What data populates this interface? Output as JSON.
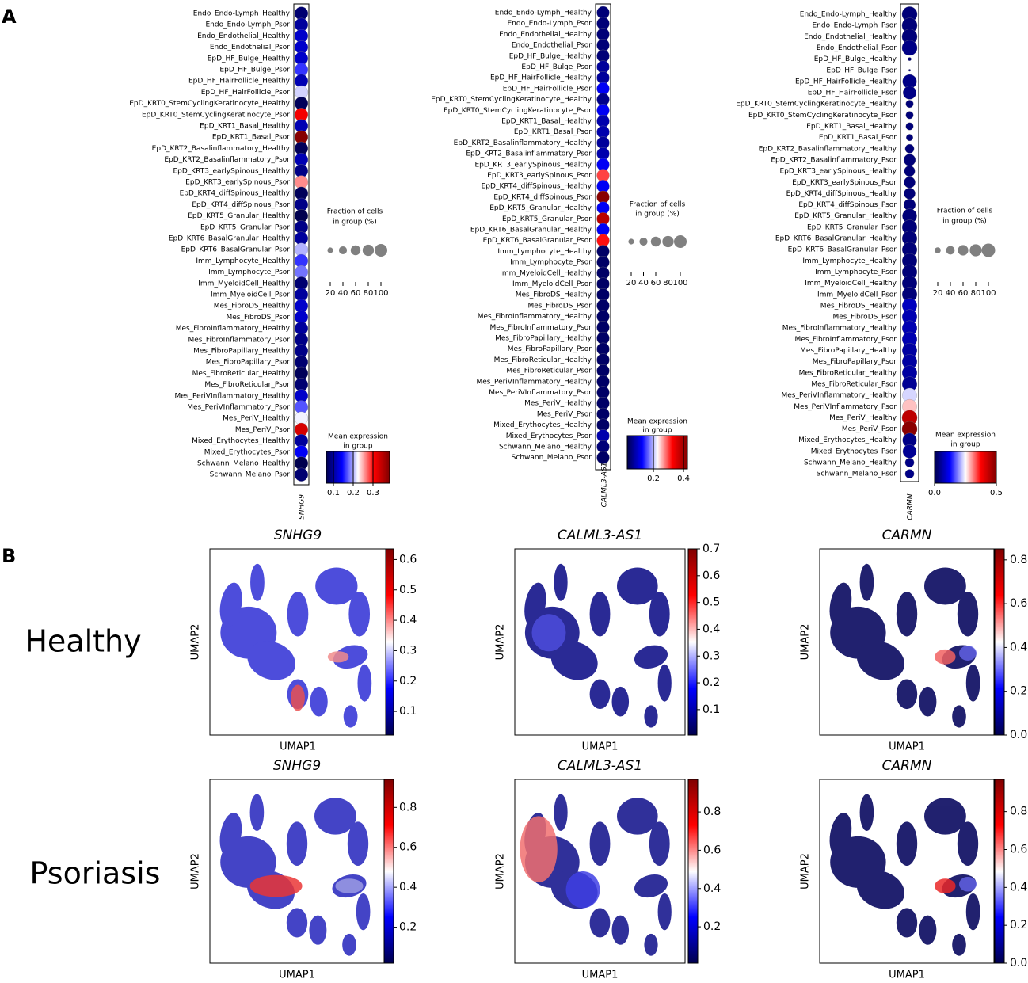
{
  "panel_labels": [
    "A",
    "B"
  ],
  "row_labels": [
    "Healthy",
    "Psoriasis"
  ],
  "chart_data": [
    {
      "type": "dotplot",
      "gene": "SNHG9",
      "categories": [
        "Endo_Endo-Lymph_Healthy",
        "Endo_Endo-Lymph_Psor",
        "Endo_Endothelial_Healthy",
        "Endo_Endothelial_Psor",
        "EpD_HF_Bulge_Healthy",
        "EpD_HF_Bulge_Psor",
        "EpD_HF_HairFollicle_Healthy",
        "EpD_HF_HairFollicle_Psor",
        "EpD_KRT0_StemCyclingKeratinocyte_Healthy",
        "EpD_KRT0_StemCyclingKeratinocyte_Psor",
        "EpD_KRT1_Basal_Healthy",
        "EpD_KRT1_Basal_Psor",
        "EpD_KRT2_Basalinflammatory_Healthy",
        "EpD_KRT2_Basalinflammatory_Psor",
        "EpD_KRT3_earlySpinous_Healthy",
        "EpD_KRT3_earlySpinous_Psor",
        "EpD_KRT4_diffSpinous_Healthy",
        "EpD_KRT4_diffSpinous_Psor",
        "EpD_KRT5_Granular_Healthy",
        "EpD_KRT5_Granular_Psor",
        "EpD_KRT6_BasalGranular_Healthy",
        "EpD_KRT6_BasalGranular_Psor",
        "Imm_Lymphocyte_Healthy",
        "Imm_Lymphocyte_Psor",
        "Imm_MyeloidCell_Healthy",
        "Imm_MyeloidCell_Psor",
        "Mes_FibroDS_Healthy",
        "Mes_FibroDS_Psor",
        "Mes_FibroInflammatory_Healthy",
        "Mes_FibroInflammatory_Psor",
        "Mes_FibroPapillary_Healthy",
        "Mes_FibroPapillary_Psor",
        "Mes_FibroReticular_Healthy",
        "Mes_FibroReticular_Psor",
        "Mes_PeriVInflammatory_Healthy",
        "Mes_PeriVInflammatory_Psor",
        "Mes_PeriV_Healthy",
        "Mes_PeriV_Psor",
        "Mixed_Erythocytes_Healthy",
        "Mixed_Erythocytes_Psor",
        "Schwann_Melano_Healthy",
        "Schwann_Melano_Psor"
      ],
      "values": [
        0.08,
        0.1,
        0.12,
        0.12,
        0.12,
        0.16,
        0.11,
        0.21,
        0.07,
        0.31,
        0.11,
        0.38,
        0.07,
        0.11,
        0.09,
        0.26,
        0.07,
        0.09,
        0.065,
        0.09,
        0.1,
        0.2,
        0.16,
        0.18,
        0.08,
        0.1,
        0.12,
        0.12,
        0.1,
        0.09,
        0.09,
        0.08,
        0.07,
        0.08,
        0.12,
        0.17,
        0.22,
        0.33,
        0.1,
        0.14,
        0.065,
        0.08
      ],
      "sizes": [
        95,
        95,
        95,
        95,
        95,
        95,
        95,
        95,
        95,
        95,
        95,
        95,
        95,
        95,
        95,
        95,
        95,
        95,
        95,
        95,
        95,
        95,
        95,
        95,
        95,
        95,
        95,
        95,
        95,
        95,
        95,
        95,
        95,
        95,
        95,
        95,
        95,
        95,
        95,
        95,
        95,
        95
      ],
      "size_title": [
        "Fraction of cells",
        "in group (%)"
      ],
      "size_ticks": [
        20,
        40,
        60,
        80,
        100
      ],
      "color_title": [
        "Mean expression",
        "in group"
      ],
      "colormap": "seismic",
      "clim": [
        0.064,
        0.384
      ],
      "cticks": [
        0.1,
        0.2,
        0.3
      ]
    },
    {
      "type": "dotplot",
      "gene": "CALML3-AS1",
      "categories": [
        "Endo_Endo-Lymph_Healthy",
        "Endo_Endo-Lymph_Psor",
        "Endo_Endothelial_Healthy",
        "Endo_Endothelial_Psor",
        "EpD_HF_Bulge_Healthy",
        "EpD_HF_Bulge_Psor",
        "EpD_HF_HairFollicle_Healthy",
        "EpD_HF_HairFollicle_Psor",
        "EpD_KRT0_StemCyclingKeratinocyte_Healthy",
        "EpD_KRT0_StemCyclingKeratinocyte_Psor",
        "EpD_KRT1_Basal_Healthy",
        "EpD_KRT1_Basal_Psor",
        "EpD_KRT2_Basalinflammatory_Healthy",
        "EpD_KRT2_Basalinflammatory_Psor",
        "EpD_KRT3_earlySpinous_Healthy",
        "EpD_KRT3_earlySpinous_Psor",
        "EpD_KRT4_diffSpinous_Healthy",
        "EpD_KRT4_diffSpinous_Psor",
        "EpD_KRT5_Granular_Healthy",
        "EpD_KRT5_Granular_Psor",
        "EpD_KRT6_BasalGranular_Healthy",
        "EpD_KRT6_BasalGranular_Psor",
        "Imm_Lymphocyte_Healthy",
        "Imm_Lymphocyte_Psor",
        "Imm_MyeloidCell_Healthy",
        "Imm_MyeloidCell_Psor",
        "Mes_FibroDS_Healthy",
        "Mes_FibroDS_Psor",
        "Mes_FibroInflammatory_Healthy",
        "Mes_FibroInflammatory_Psor",
        "Mes_FibroPapillary_Healthy",
        "Mes_FibroPapillary_Psor",
        "Mes_FibroReticular_Healthy",
        "Mes_FibroReticular_Psor",
        "Mes_PeriVInflammatory_Healthy",
        "Mes_PeriVInflammatory_Psor",
        "Mes_PeriV_Healthy",
        "Mes_PeriV_Psor",
        "Mixed_Erythocytes_Healthy",
        "Mixed_Erythocytes_Psor",
        "Schwann_Melano_Healthy",
        "Schwann_Melano_Psor"
      ],
      "values": [
        0.05,
        0.05,
        0.05,
        0.05,
        0.05,
        0.07,
        0.07,
        0.12,
        0.06,
        0.12,
        0.08,
        0.08,
        0.07,
        0.08,
        0.12,
        0.3,
        0.12,
        0.42,
        0.12,
        0.38,
        0.12,
        0.32,
        0.04,
        0.04,
        0.04,
        0.04,
        0.04,
        0.04,
        0.04,
        0.04,
        0.04,
        0.04,
        0.04,
        0.04,
        0.04,
        0.04,
        0.04,
        0.04,
        0.04,
        0.08,
        0.05,
        0.04
      ],
      "sizes": [
        95,
        95,
        95,
        95,
        95,
        95,
        95,
        95,
        95,
        95,
        95,
        95,
        95,
        95,
        95,
        95,
        95,
        95,
        95,
        95,
        95,
        95,
        95,
        95,
        95,
        95,
        95,
        95,
        95,
        95,
        95,
        95,
        95,
        95,
        95,
        95,
        95,
        95,
        95,
        95,
        95,
        95
      ],
      "size_title": [
        "Fraction of cells",
        "in group (%)"
      ],
      "size_ticks": [
        20,
        40,
        60,
        80,
        100
      ],
      "color_title": [
        "Mean expression",
        "in group"
      ],
      "colormap": "seismic",
      "clim": [
        0.026,
        0.426
      ],
      "cticks": [
        0.2,
        0.4
      ]
    },
    {
      "type": "dotplot",
      "gene": "CARMN",
      "categories": [
        "Endo_Endo-Lymph_Healthy",
        "Endo_Endo-Lymph_Psor",
        "Endo_Endothelial_Healthy",
        "Endo_Endothelial_Psor",
        "EpD_HF_Bulge_Healthy",
        "EpD_HF_Bulge_Psor",
        "EpD_HF_HairFollicle_Healthy",
        "EpD_HF_HairFollicle_Psor",
        "EpD_KRT0_StemCyclingKeratinocyte_Healthy",
        "EpD_KRT0_StemCyclingKeratinocyte_Psor",
        "EpD_KRT1_Basal_Healthy",
        "EpD_KRT1_Basal_Psor",
        "EpD_KRT2_Basalinflammatory_Healthy",
        "EpD_KRT2_Basalinflammatory_Psor",
        "EpD_KRT3_earlySpinous_Healthy",
        "EpD_KRT3_earlySpinous_Psor",
        "EpD_KRT4_diffSpinous_Healthy",
        "EpD_KRT4_diffSpinous_Psor",
        "EpD_KRT5_Granular_Healthy",
        "EpD_KRT5_Granular_Psor",
        "EpD_KRT6_BasalGranular_Healthy",
        "EpD_KRT6_BasalGranular_Psor",
        "Imm_Lymphocyte_Healthy",
        "Imm_Lymphocyte_Psor",
        "Imm_MyeloidCell_Healthy",
        "Imm_MyeloidCell_Psor",
        "Mes_FibroDS_Healthy",
        "Mes_FibroDS_Psor",
        "Mes_FibroInflammatory_Healthy",
        "Mes_FibroInflammatory_Psor",
        "Mes_FibroPapillary_Healthy",
        "Mes_FibroPapillary_Psor",
        "Mes_FibroReticular_Healthy",
        "Mes_FibroReticular_Psor",
        "Mes_PeriVInflammatory_Healthy",
        "Mes_PeriVInflammatory_Psor",
        "Mes_PeriV_Healthy",
        "Mes_PeriV_Psor",
        "Mixed_Erythocytes_Healthy",
        "Mixed_Erythocytes_Psor",
        "Schwann_Melano_Healthy",
        "Schwann_Melano_Psor"
      ],
      "values": [
        0.03,
        0.03,
        0.03,
        0.04,
        0.03,
        0.03,
        0.04,
        0.04,
        0.03,
        0.03,
        0.03,
        0.03,
        0.03,
        0.03,
        0.03,
        0.03,
        0.03,
        0.03,
        0.03,
        0.03,
        0.03,
        0.03,
        0.03,
        0.03,
        0.03,
        0.03,
        0.08,
        0.07,
        0.07,
        0.07,
        0.06,
        0.06,
        0.06,
        0.05,
        0.23,
        0.28,
        0.44,
        0.49,
        0.04,
        0.05,
        0.04,
        0.04
      ],
      "sizes": [
        100,
        100,
        100,
        100,
        5,
        2,
        85,
        75,
        25,
        25,
        25,
        20,
        35,
        60,
        50,
        55,
        55,
        60,
        90,
        95,
        95,
        95,
        95,
        95,
        95,
        95,
        95,
        95,
        95,
        95,
        95,
        95,
        95,
        95,
        90,
        90,
        100,
        100,
        85,
        80,
        35,
        35
      ],
      "size_title": [
        "Fraction of cells",
        "in group (%)"
      ],
      "size_ticks": [
        20,
        40,
        60,
        80,
        100
      ],
      "color_title": [
        "Mean expression",
        "in group"
      ],
      "colormap": "seismic",
      "clim": [
        0,
        0.5
      ],
      "cticks": [
        {
          "value": 0,
          "label": "0.0"
        },
        0.5
      ]
    },
    {
      "type": "umap",
      "title": "SNHG9",
      "xlabel": "UMAP1",
      "ylabel": "UMAP2",
      "colormap": "seismic",
      "clim": [
        0.022,
        0.635
      ],
      "cticks": [
        0.1,
        0.2,
        0.3,
        0.4,
        0.5,
        0.6
      ]
    },
    {
      "type": "umap",
      "title": "CALML3-AS1",
      "xlabel": "UMAP1",
      "ylabel": "UMAP2",
      "colormap": "seismic",
      "clim": [
        0.005,
        0.7
      ],
      "cticks": [
        0.1,
        0.2,
        0.3,
        0.4,
        0.5,
        0.6,
        0.7
      ]
    },
    {
      "type": "umap",
      "title": "CARMN",
      "xlabel": "UMAP1",
      "ylabel": "UMAP2",
      "colormap": "seismic",
      "clim": [
        0,
        0.85
      ],
      "cticks": [
        {
          "value": 0,
          "label": "0.0"
        },
        0.2,
        0.4,
        0.6,
        0.8
      ]
    },
    {
      "type": "umap",
      "title": "SNHG9",
      "xlabel": "UMAP1",
      "ylabel": "UMAP2",
      "colormap": "seismic",
      "clim": [
        0.02,
        0.94
      ],
      "cticks": [
        0.2,
        0.4,
        0.6,
        0.8
      ]
    },
    {
      "type": "umap",
      "title": "CALML3-AS1",
      "xlabel": "UMAP1",
      "ylabel": "UMAP2",
      "colormap": "seismic",
      "clim": [
        0.01,
        0.97
      ],
      "cticks": [
        0.2,
        0.4,
        0.6,
        0.8
      ]
    },
    {
      "type": "umap",
      "title": "CARMN",
      "xlabel": "UMAP1",
      "ylabel": "UMAP2",
      "colormap": "seismic",
      "clim": [
        0,
        0.97
      ],
      "cticks": [
        {
          "value": 0,
          "label": "0.0"
        },
        0.2,
        0.4,
        0.6,
        0.8
      ]
    }
  ]
}
